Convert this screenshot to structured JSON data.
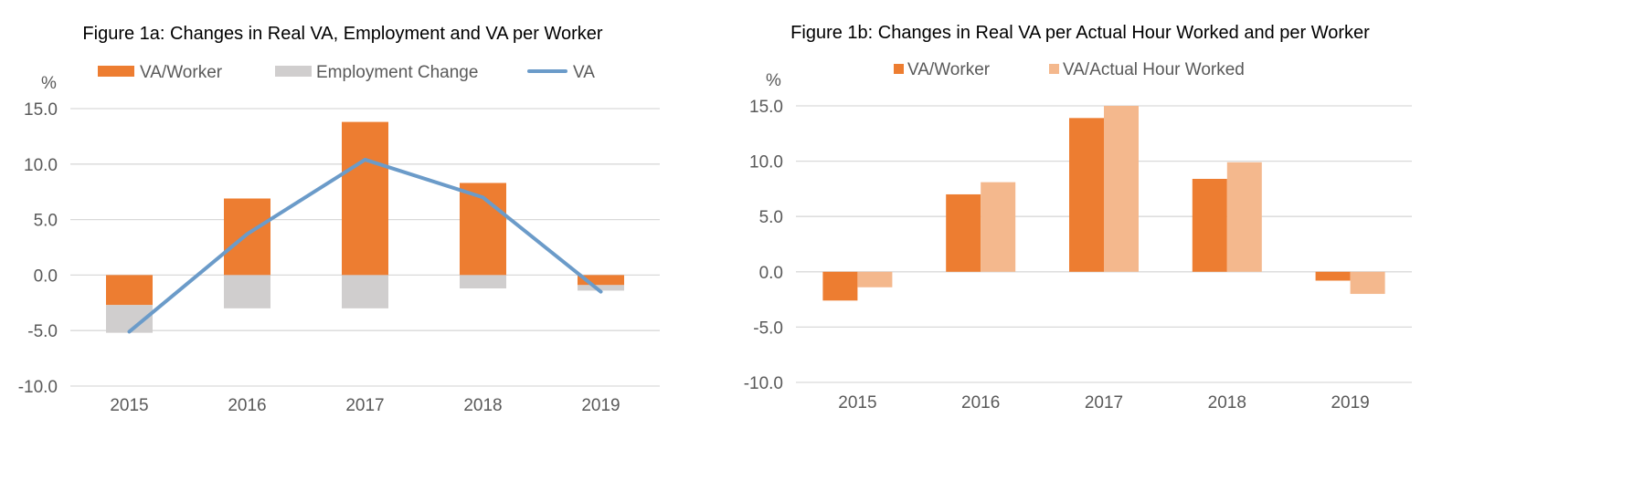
{
  "chart_data": [
    {
      "type": "bar",
      "title": "Figure 1a: Changes in Real VA, Employment and VA per Worker",
      "ylabel_unit": "%",
      "categories": [
        "2015",
        "2016",
        "2017",
        "2018",
        "2019"
      ],
      "ylim": [
        -10,
        15
      ],
      "yticks": [
        15,
        10,
        5,
        0,
        -5,
        -10
      ],
      "ytick_labels": [
        "15.0",
        "10.0",
        "5.0",
        "0.0",
        "-5.0",
        "-10.0"
      ],
      "stacked": true,
      "grid": true,
      "legend_position": "top",
      "series": [
        {
          "name": "VA/Worker",
          "kind": "bar",
          "color": "#ed7d31",
          "values": [
            -2.7,
            6.9,
            13.8,
            8.3,
            -0.9
          ]
        },
        {
          "name": "Employment Change",
          "kind": "bar",
          "color": "#d0cece",
          "values": [
            -2.5,
            -3.0,
            -3.0,
            -1.2,
            -0.5
          ]
        },
        {
          "name": "VA",
          "kind": "line",
          "color": "#6b9bc9",
          "values": [
            -5.1,
            3.7,
            10.4,
            7.0,
            -1.5
          ]
        }
      ]
    },
    {
      "type": "bar",
      "title": "Figure 1b: Changes in Real VA per Actual Hour Worked and per Worker",
      "ylabel_unit": "%",
      "categories": [
        "2015",
        "2016",
        "2017",
        "2018",
        "2019"
      ],
      "ylim": [
        -10,
        15
      ],
      "yticks": [
        15,
        10,
        5,
        0,
        -5,
        -10
      ],
      "ytick_labels": [
        "15.0",
        "10.0",
        "5.0",
        "0.0",
        "-5.0",
        "-10.0"
      ],
      "stacked": false,
      "grid": true,
      "legend_position": "top",
      "series": [
        {
          "name": "VA/Worker",
          "kind": "bar",
          "color": "#ed7d31",
          "values": [
            -2.6,
            7.0,
            13.9,
            8.4,
            -0.8
          ]
        },
        {
          "name": "VA/Actual Hour Worked",
          "kind": "bar",
          "color": "#f4b88d",
          "values": [
            -1.4,
            8.1,
            15.0,
            9.9,
            -2.0
          ]
        }
      ]
    }
  ]
}
